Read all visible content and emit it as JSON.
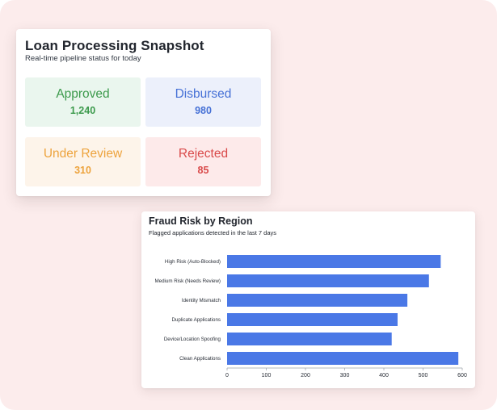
{
  "snapshot": {
    "title": "Loan Processing Snapshot",
    "subtitle": "Real-time pipeline status for today",
    "tiles": [
      {
        "label": "Approved",
        "value": "1,240",
        "color": "#3c9a4c"
      },
      {
        "label": "Disbursed",
        "value": "980",
        "color": "#4671d6"
      },
      {
        "label": "Under Review",
        "value": "310",
        "color": "#eda33d"
      },
      {
        "label": "Rejected",
        "value": "85",
        "color": "#d94a4a"
      }
    ]
  },
  "fraud": {
    "title": "Fraud Risk by Region",
    "subtitle": "Flagged applications detected in the last 7 days"
  },
  "chart_data": {
    "type": "bar",
    "orientation": "horizontal",
    "title": "Fraud Risk by Region",
    "subtitle": "Flagged applications detected in the last 7 days",
    "categories": [
      "High Risk (Auto-Blocked)",
      "Medium Risk (Needs Review)",
      "Identity Mismatch",
      "Duplicate Applications",
      "Device/Location Spoofing",
      "Clean Applications"
    ],
    "values": [
      545,
      515,
      460,
      435,
      420,
      590
    ],
    "xlim": [
      0,
      600
    ],
    "xticks": [
      0,
      100,
      200,
      300,
      400,
      500,
      600
    ],
    "xlabel": "",
    "ylabel": "",
    "grid": false,
    "bar_color": "#4a78e6"
  }
}
